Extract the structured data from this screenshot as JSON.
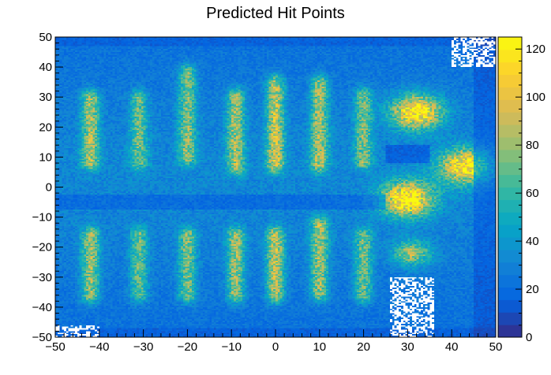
{
  "chart_data": {
    "type": "heatmap",
    "title": "Predicted Hit Points",
    "xlabel": "",
    "ylabel": "",
    "xlim": [
      -50,
      50
    ],
    "ylim": [
      -50,
      50
    ],
    "x_ticks": [
      {
        "value": -50,
        "label": "−50"
      },
      {
        "value": -40,
        "label": "−40"
      },
      {
        "value": -30,
        "label": "−30"
      },
      {
        "value": -20,
        "label": "−20"
      },
      {
        "value": -10,
        "label": "−10"
      },
      {
        "value": 0,
        "label": "0"
      },
      {
        "value": 10,
        "label": "10"
      },
      {
        "value": 20,
        "label": "20"
      },
      {
        "value": 30,
        "label": "30"
      },
      {
        "value": 40,
        "label": "40"
      },
      {
        "value": 50,
        "label": "50"
      }
    ],
    "y_ticks": [
      {
        "value": -50,
        "label": "−50"
      },
      {
        "value": -40,
        "label": "−40"
      },
      {
        "value": -30,
        "label": "−30"
      },
      {
        "value": -20,
        "label": "−20"
      },
      {
        "value": -10,
        "label": "−10"
      },
      {
        "value": 0,
        "label": "0"
      },
      {
        "value": 10,
        "label": "10"
      },
      {
        "value": 20,
        "label": "20"
      },
      {
        "value": 30,
        "label": "30"
      },
      {
        "value": 40,
        "label": "40"
      },
      {
        "value": 50,
        "label": "50"
      }
    ],
    "color_scale": {
      "zmin": 0,
      "zmax": 125,
      "ticks": [
        0,
        20,
        40,
        60,
        80,
        100,
        120
      ],
      "palette": [
        "#352a87",
        "#0363e1",
        "#1485d4",
        "#06a7c6",
        "#38b99e",
        "#92bf73",
        "#d9ba56",
        "#fcce2e",
        "#f9fb0e"
      ]
    },
    "bins": {
      "nx": 200,
      "ny": 200
    },
    "bands": [
      {
        "x_center": -42,
        "y_ranges": [
          [
            4,
            34
          ],
          [
            -40,
            -12
          ]
        ],
        "peak": 85
      },
      {
        "x_center": -31,
        "y_ranges": [
          [
            4,
            34
          ],
          [
            -40,
            -12
          ]
        ],
        "peak": 72
      },
      {
        "x_center": -20,
        "y_ranges": [
          [
            4,
            44
          ],
          [
            -40,
            -12
          ]
        ],
        "peak": 78
      },
      {
        "x_center": -9,
        "y_ranges": [
          [
            2,
            35
          ],
          [
            -40,
            -12
          ]
        ],
        "peak": 85
      },
      {
        "x_center": 0,
        "y_ranges": [
          [
            2,
            40
          ],
          [
            -40,
            -12
          ]
        ],
        "peak": 92
      },
      {
        "x_center": 10,
        "y_ranges": [
          [
            2,
            40
          ],
          [
            -40,
            -8
          ]
        ],
        "peak": 85
      },
      {
        "x_center": 20,
        "y_ranges": [
          [
            4,
            35
          ],
          [
            -40,
            -12
          ]
        ],
        "peak": 75
      }
    ],
    "hotspots": [
      {
        "x": 32,
        "y": 25,
        "radius": 4,
        "peak": 120
      },
      {
        "x": 30,
        "y": -4,
        "radius": 4,
        "peak": 125
      },
      {
        "x": 43,
        "y": 7,
        "radius": 4,
        "peak": 115
      },
      {
        "x": 31,
        "y": -22,
        "radius": 3,
        "peak": 80
      }
    ],
    "empty_regions": [
      {
        "x": [
          40,
          50
        ],
        "y": [
          40,
          50
        ]
      },
      {
        "x": [
          26,
          36
        ],
        "y": [
          -50,
          -30
        ]
      },
      {
        "x": [
          -50,
          -40
        ],
        "y": [
          -50,
          -46
        ]
      }
    ]
  }
}
